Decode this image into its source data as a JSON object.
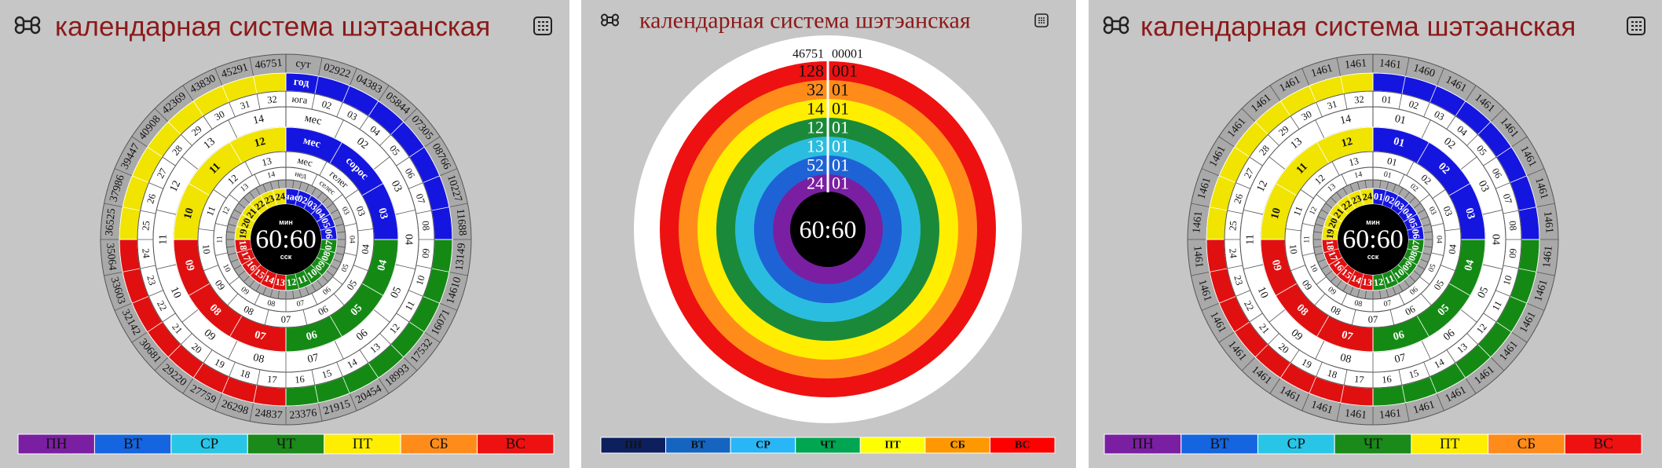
{
  "panels": [
    {
      "title": "календарная система шэтэанская",
      "center": {
        "top": "мин",
        "time": "60:60",
        "bottom": "сск"
      },
      "rings": {
        "outer": [
          "сут",
          "02922",
          "04383",
          "05844",
          "07305",
          "08766",
          "10227",
          "11688",
          "13149",
          "14610",
          "16071",
          "17532",
          "18993",
          "20454",
          "21915",
          "23376",
          "24837",
          "26298",
          "27759",
          "29220",
          "30681",
          "32142",
          "33603",
          "35064",
          "36525",
          "37986",
          "39447",
          "40908",
          "42369",
          "43830",
          "45291",
          "46751"
        ],
        "days": [
          "год"
        ],
        "years": [
          "юга",
          "02",
          "03",
          "04",
          "05",
          "06",
          "07",
          "08",
          "09",
          "10",
          "11",
          "12",
          "13",
          "14",
          "15",
          "16",
          "17",
          "18",
          "19",
          "20",
          "21",
          "22",
          "23",
          "24",
          "25",
          "26",
          "27",
          "28",
          "29",
          "30",
          "31",
          "32"
        ],
        "months": [
          "мес",
          "02",
          "03",
          "04",
          "05",
          "06",
          "07",
          "08",
          "09",
          "10",
          "11",
          "12",
          "13",
          "14"
        ],
        "seasons": [
          "мес",
          "сорос",
          "03",
          "04",
          "05",
          "06",
          "07",
          "08",
          "09",
          "10",
          "11",
          "12"
        ],
        "weeks": [
          "мес",
          "гелег",
          "03",
          "04",
          "05",
          "06",
          "07",
          "08",
          "09",
          "10",
          "11",
          "12",
          "13"
        ],
        "weekdays": [
          "нед",
          "селес",
          "03",
          "04",
          "05",
          "06",
          "07",
          "08",
          "09",
          "10",
          "11",
          "12",
          "13",
          "14"
        ],
        "hours": [
          "час",
          "02",
          "03",
          "04",
          "05",
          "06",
          "07",
          "08",
          "09",
          "10",
          "11",
          "12",
          "13",
          "14",
          "15",
          "16",
          "17",
          "18",
          "19",
          "20",
          "21",
          "22",
          "23",
          "24"
        ]
      },
      "weekday_bar": [
        {
          "label": "ПН",
          "color": "#7b1fa2"
        },
        {
          "label": "ВТ",
          "color": "#1565e0"
        },
        {
          "label": "СР",
          "color": "#29c5e6"
        },
        {
          "label": "ЧТ",
          "color": "#1a8a1a"
        },
        {
          "label": "ПТ",
          "color": "#ffee00"
        },
        {
          "label": "СБ",
          "color": "#ff8c1a"
        },
        {
          "label": "ВС",
          "color": "#ee1111"
        }
      ]
    },
    {
      "title": "календарная система шэтэанская",
      "center": {
        "time": "60:60"
      },
      "rows": [
        {
          "left": "46751",
          "right": "00001",
          "color": "#ffffff"
        },
        {
          "left": "128",
          "right": "001",
          "color": "#ee1111"
        },
        {
          "left": "32",
          "right": "01",
          "color": "#ff8c1a"
        },
        {
          "left": "14",
          "right": "01",
          "color": "#ffee00"
        },
        {
          "left": "12",
          "right": "01",
          "color": "#1a8a3a"
        },
        {
          "left": "13",
          "right": "01",
          "color": "#2bbde0"
        },
        {
          "left": "52",
          "right": "01",
          "color": "#1e63d6"
        },
        {
          "left": "24",
          "right": "01",
          "color": "#7b1fa2"
        }
      ],
      "weekday_bar": [
        {
          "label": "ПН",
          "color": "#0d1f5c"
        },
        {
          "label": "ВТ",
          "color": "#1565c0"
        },
        {
          "label": "СР",
          "color": "#29b6f6"
        },
        {
          "label": "ЧТ",
          "color": "#00a651"
        },
        {
          "label": "ПТ",
          "color": "#ffff00"
        },
        {
          "label": "СБ",
          "color": "#ff9800"
        },
        {
          "label": "ВС",
          "color": "#ff0000"
        }
      ]
    },
    {
      "title": "календарная система шэтэанская",
      "center": {
        "top": "мин",
        "time": "60:60",
        "bottom": "сск"
      },
      "rings": {
        "outer": [
          "1461",
          "1460",
          "1461",
          "1461",
          "1461",
          "1461",
          "1461",
          "1461",
          "1461",
          "1461",
          "1461",
          "1461",
          "1461",
          "1461",
          "1461",
          "1461",
          "1461",
          "1461",
          "1461",
          "1461",
          "1461",
          "1461",
          "1461",
          "1461",
          "1461",
          "1461",
          "1461",
          "1461",
          "1461",
          "1461",
          "1461",
          "1461"
        ],
        "years": [
          "01",
          "02",
          "03",
          "04",
          "05",
          "06",
          "07",
          "08",
          "09",
          "10",
          "11",
          "12",
          "13",
          "14",
          "15",
          "16",
          "17",
          "18",
          "19",
          "20",
          "21",
          "22",
          "23",
          "24",
          "25",
          "26",
          "27",
          "28",
          "29",
          "30",
          "31",
          "32"
        ],
        "months": [
          "01",
          "02",
          "03",
          "04",
          "05",
          "06",
          "07",
          "08",
          "09",
          "10",
          "11",
          "12",
          "13",
          "14"
        ],
        "seasons": [
          "01",
          "02",
          "03",
          "04",
          "05",
          "06",
          "07",
          "08",
          "09",
          "10",
          "11",
          "12"
        ],
        "weeks": [
          "01",
          "02",
          "03",
          "04",
          "05",
          "06",
          "07",
          "08",
          "09",
          "10",
          "11",
          "12",
          "13"
        ],
        "weekdays": [
          "01",
          "02",
          "03",
          "04",
          "05",
          "06",
          "07",
          "08",
          "09",
          "10",
          "11",
          "12",
          "13",
          "14"
        ],
        "hours": [
          "01",
          "02",
          "03",
          "04",
          "05",
          "06",
          "07",
          "08",
          "09",
          "10",
          "11",
          "12",
          "13",
          "14",
          "15",
          "16",
          "17",
          "18",
          "19",
          "20",
          "21",
          "22",
          "23",
          "24"
        ]
      },
      "weekday_bar": [
        {
          "label": "ПН",
          "color": "#7b1fa2"
        },
        {
          "label": "ВТ",
          "color": "#1565e0"
        },
        {
          "label": "СР",
          "color": "#29c5e6"
        },
        {
          "label": "ЧТ",
          "color": "#1a8a1a"
        },
        {
          "label": "ПТ",
          "color": "#ffee00"
        },
        {
          "label": "СБ",
          "color": "#ff8c1a"
        },
        {
          "label": "ВС",
          "color": "#ee1111"
        }
      ]
    }
  ]
}
